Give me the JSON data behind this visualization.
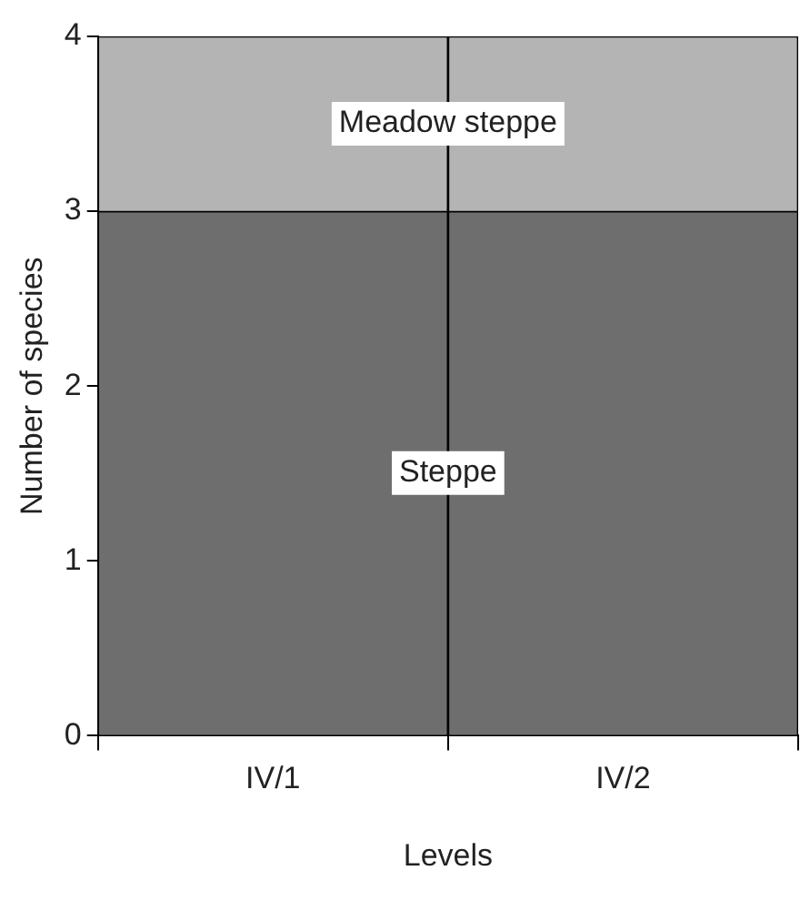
{
  "chart_data": {
    "type": "bar",
    "stacked": true,
    "xlabel": "Levels",
    "ylabel": "Number of species",
    "categories": [
      "IV/1",
      "IV/2"
    ],
    "series": [
      {
        "name": "Steppe",
        "color": "#6e6e6e",
        "values": [
          3,
          3
        ]
      },
      {
        "name": "Meadow steppe",
        "color": "#b4b4b4",
        "values": [
          1,
          1
        ]
      }
    ],
    "ylim": [
      0,
      4
    ],
    "yticks": [
      0,
      1,
      2,
      3,
      4
    ],
    "legend": false
  }
}
